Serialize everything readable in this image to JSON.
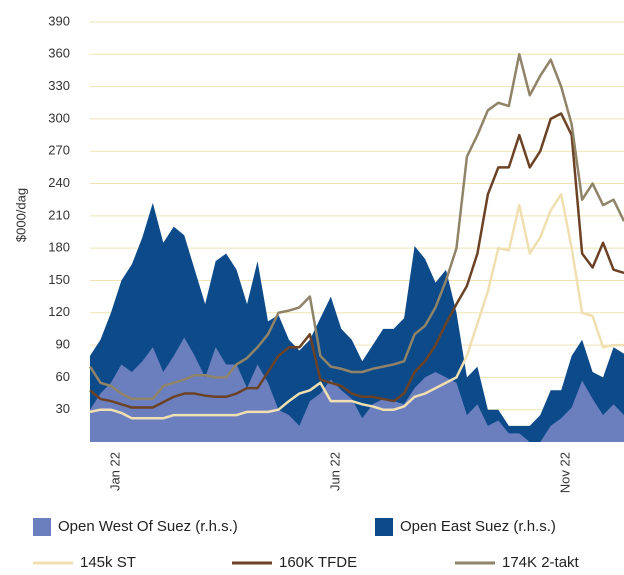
{
  "chart_data": {
    "type": "line",
    "y_label": "$000/dag",
    "categories": [
      null,
      null,
      "Jan 22",
      null,
      null,
      null,
      null,
      null,
      null,
      null,
      null,
      null,
      null,
      null,
      null,
      null,
      null,
      null,
      null,
      null,
      null,
      null,
      null,
      "Jun 22",
      null,
      null,
      null,
      null,
      null,
      null,
      null,
      null,
      null,
      null,
      null,
      null,
      null,
      null,
      null,
      null,
      null,
      null,
      null,
      null,
      null,
      "Nov 22",
      null,
      null,
      null,
      null,
      null,
      null
    ],
    "ylim": [
      0,
      390
    ],
    "yticks": [
      30,
      60,
      90,
      120,
      150,
      180,
      210,
      240,
      270,
      300,
      330,
      360,
      390
    ],
    "grid": true,
    "series": [
      {
        "name": "Open East Suez (r.h.s.)",
        "type": "area",
        "color": "#0d4a8a",
        "values": [
          80,
          95,
          120,
          150,
          165,
          190,
          222,
          185,
          200,
          192,
          160,
          128,
          168,
          175,
          160,
          128,
          168,
          112,
          118,
          95,
          85,
          95,
          115,
          135,
          105,
          95,
          75,
          90,
          105,
          105,
          115,
          182,
          170,
          148,
          160,
          120,
          60,
          70,
          30,
          30,
          15,
          15,
          15,
          25,
          48,
          48,
          80,
          95,
          65,
          60,
          88,
          82
        ]
      },
      {
        "name": "Open West Of Suez (r.h.s.)",
        "type": "area",
        "color": "#6b7fbf",
        "values": [
          30,
          45,
          55,
          72,
          65,
          75,
          88,
          65,
          80,
          97,
          80,
          60,
          88,
          72,
          72,
          50,
          72,
          55,
          30,
          25,
          15,
          38,
          45,
          58,
          48,
          40,
          22,
          35,
          40,
          38,
          35,
          50,
          60,
          65,
          60,
          55,
          25,
          35,
          15,
          20,
          8,
          8,
          0,
          0,
          15,
          22,
          32,
          57,
          40,
          25,
          35,
          25
        ]
      },
      {
        "name": "145k ST",
        "type": "line",
        "color": "#f0dfb0",
        "values": [
          28,
          30,
          30,
          27,
          22,
          22,
          22,
          22,
          25,
          25,
          25,
          25,
          25,
          25,
          25,
          28,
          28,
          28,
          30,
          38,
          45,
          48,
          55,
          38,
          38,
          38,
          35,
          33,
          30,
          30,
          33,
          42,
          45,
          50,
          55,
          60,
          80,
          110,
          140,
          180,
          178,
          220,
          175,
          190,
          215,
          230,
          180,
          120,
          117,
          88,
          90,
          90
        ]
      },
      {
        "name": "160K TFDE",
        "type": "line",
        "color": "#6b4226",
        "values": [
          48,
          40,
          38,
          35,
          32,
          32,
          32,
          37,
          42,
          45,
          45,
          43,
          42,
          42,
          45,
          50,
          50,
          65,
          80,
          88,
          88,
          100,
          58,
          55,
          52,
          45,
          42,
          42,
          40,
          38,
          45,
          65,
          75,
          90,
          110,
          128,
          145,
          175,
          230,
          255,
          255,
          285,
          255,
          270,
          300,
          305,
          285,
          175,
          162,
          185,
          160,
          157
        ]
      },
      {
        "name": "174K 2-takt",
        "type": "line",
        "color": "#8f8368",
        "values": [
          70,
          55,
          52,
          45,
          40,
          40,
          40,
          52,
          55,
          58,
          62,
          62,
          60,
          60,
          72,
          78,
          88,
          100,
          120,
          122,
          125,
          135,
          80,
          70,
          68,
          65,
          65,
          68,
          70,
          72,
          75,
          100,
          108,
          125,
          150,
          180,
          265,
          285,
          308,
          315,
          312,
          360,
          322,
          340,
          355,
          330,
          295,
          225,
          240,
          220,
          225,
          205
        ]
      }
    ]
  }
}
